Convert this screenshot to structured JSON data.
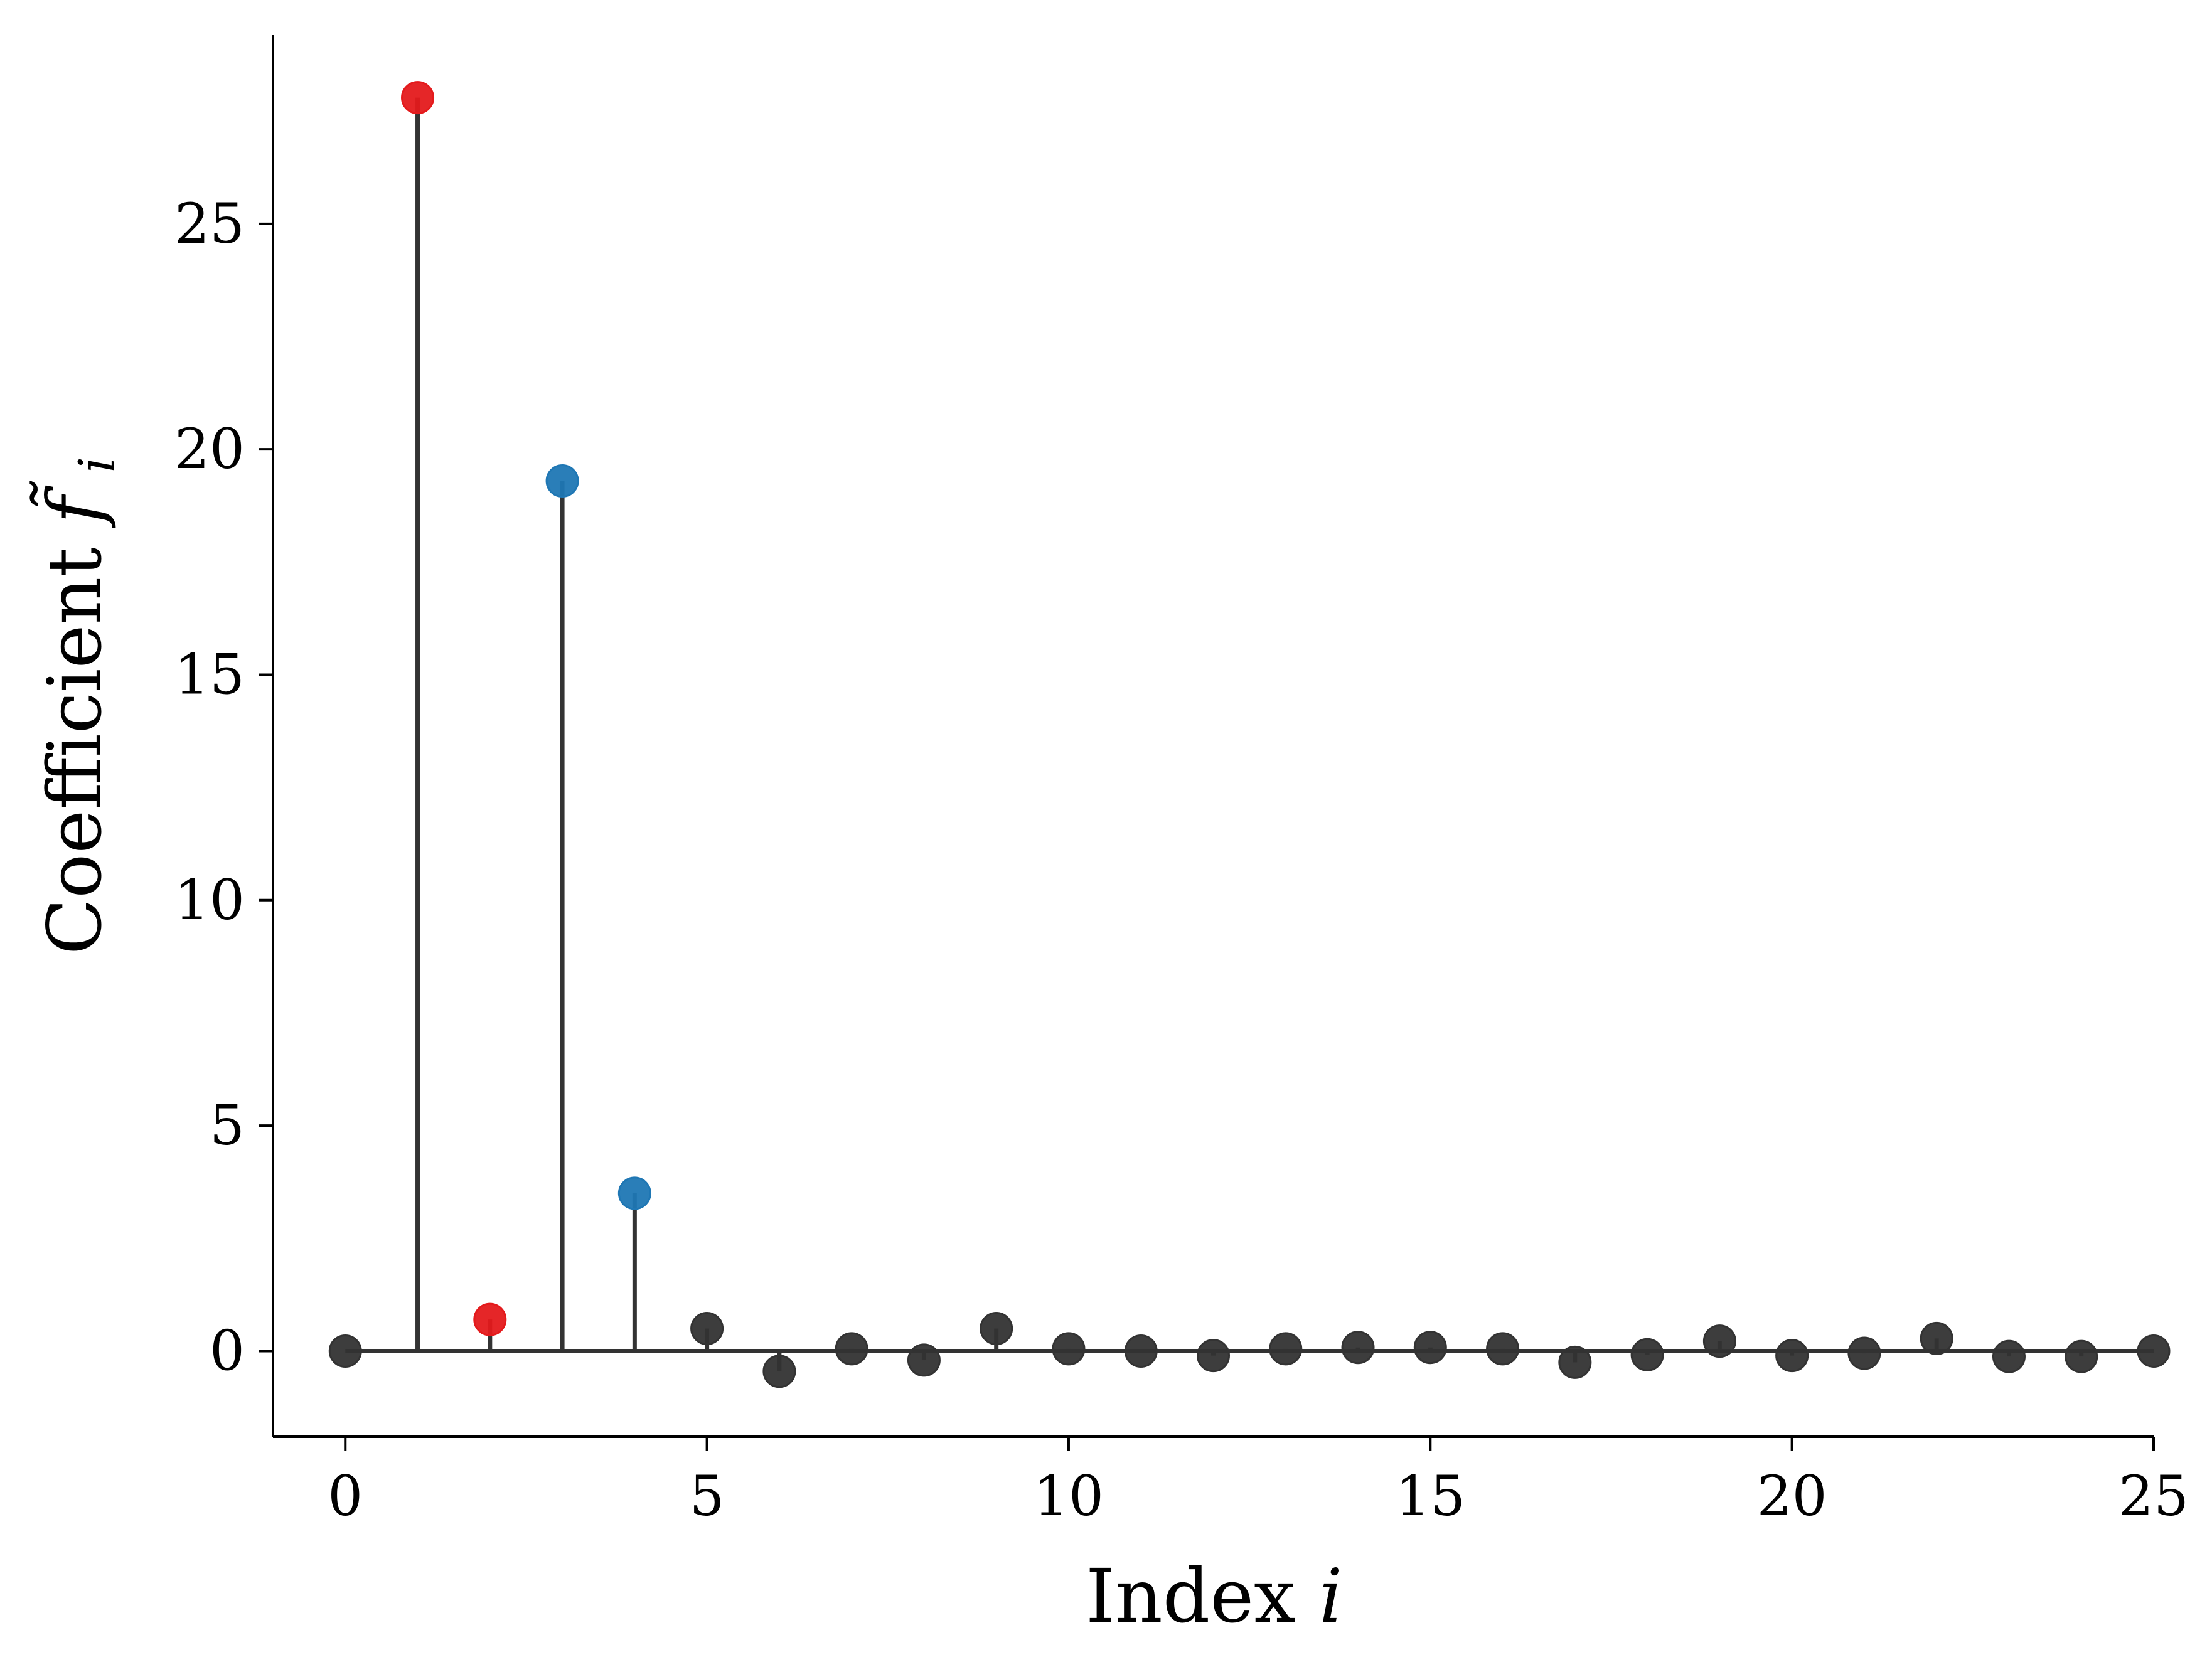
{
  "chart_data": {
    "type": "scatter",
    "subtype": "stem",
    "title": "",
    "xlabel": "Index",
    "xlabel_var": "i",
    "ylabel": "Coefficient",
    "ylabel_var": "f̃",
    "ylabel_sub": "i",
    "xlim": [
      -1,
      25
    ],
    "ylim": [
      -1.9,
      29.2
    ],
    "xticks": [
      0,
      5,
      10,
      15,
      20,
      25
    ],
    "yticks": [
      0,
      5,
      10,
      15,
      20,
      25
    ],
    "grid": false,
    "baseline": 0,
    "colors": {
      "default": "#333333",
      "red": "#e41a1c",
      "blue": "#1f77b4"
    },
    "points": [
      {
        "x": 0,
        "y": 0.0,
        "color": "default"
      },
      {
        "x": 1,
        "y": 27.8,
        "color": "red"
      },
      {
        "x": 2,
        "y": 0.7,
        "color": "red"
      },
      {
        "x": 3,
        "y": 19.3,
        "color": "blue"
      },
      {
        "x": 4,
        "y": 3.5,
        "color": "blue"
      },
      {
        "x": 5,
        "y": 0.5,
        "color": "default"
      },
      {
        "x": 6,
        "y": -0.45,
        "color": "default"
      },
      {
        "x": 7,
        "y": 0.05,
        "color": "default"
      },
      {
        "x": 8,
        "y": -0.2,
        "color": "default"
      },
      {
        "x": 9,
        "y": 0.5,
        "color": "default"
      },
      {
        "x": 10,
        "y": 0.05,
        "color": "default"
      },
      {
        "x": 11,
        "y": 0.0,
        "color": "default"
      },
      {
        "x": 12,
        "y": -0.1,
        "color": "default"
      },
      {
        "x": 13,
        "y": 0.05,
        "color": "default"
      },
      {
        "x": 14,
        "y": 0.08,
        "color": "default"
      },
      {
        "x": 15,
        "y": 0.08,
        "color": "default"
      },
      {
        "x": 16,
        "y": 0.05,
        "color": "default"
      },
      {
        "x": 17,
        "y": -0.25,
        "color": "default"
      },
      {
        "x": 18,
        "y": -0.08,
        "color": "default"
      },
      {
        "x": 19,
        "y": 0.22,
        "color": "default"
      },
      {
        "x": 20,
        "y": -0.1,
        "color": "default"
      },
      {
        "x": 21,
        "y": -0.05,
        "color": "default"
      },
      {
        "x": 22,
        "y": 0.28,
        "color": "default"
      },
      {
        "x": 23,
        "y": -0.12,
        "color": "default"
      },
      {
        "x": 24,
        "y": -0.12,
        "color": "default"
      },
      {
        "x": 25,
        "y": 0.0,
        "color": "default"
      }
    ]
  }
}
